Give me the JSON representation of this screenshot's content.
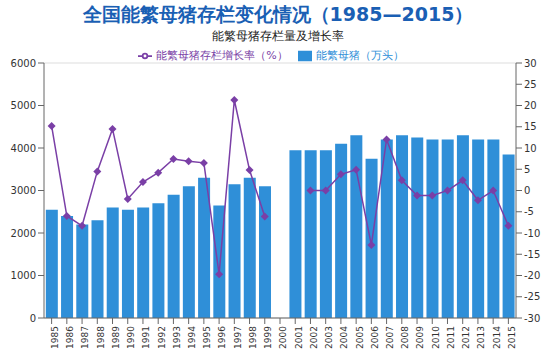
{
  "chart_data": {
    "type": "bar",
    "title": "全国能繁母猪存栏变化情况（1985—2015）",
    "subtitle": "能繁母猪存栏量及增长率",
    "categories": [
      "1985",
      "1986",
      "1987",
      "1988",
      "1989",
      "1990",
      "1991",
      "1992",
      "1993",
      "1994",
      "1995",
      "1996",
      "1997",
      "1998",
      "1999",
      "2000",
      "2001",
      "2002",
      "2003",
      "2004",
      "2005",
      "2006",
      "2007",
      "2008",
      "2009",
      "2010",
      "2011",
      "2012",
      "2013",
      "2014",
      "2015"
    ],
    "series": [
      {
        "name": "能繁母猪（万头）",
        "type": "bar",
        "color": "#2f8fd8",
        "values": [
          2550,
          2398,
          2200,
          2300,
          2600,
          2550,
          2600,
          2700,
          2900,
          3100,
          3300,
          2650,
          3150,
          3300,
          3100,
          null,
          3950,
          3950,
          3950,
          4100,
          4300,
          3750,
          4200,
          4300,
          4250,
          4200,
          4200,
          4300,
          4200,
          4200,
          3850
        ]
      },
      {
        "name": "能繁母猪存栏增长率（%）",
        "type": "line",
        "axis": "y2",
        "color": "#7a3fa6",
        "marker": "diamond",
        "values": [
          15.2,
          -6.0,
          -8.3,
          4.5,
          14.5,
          -2.0,
          2.0,
          4.2,
          7.4,
          6.9,
          6.5,
          -19.7,
          21.3,
          4.8,
          -6.1,
          null,
          null,
          0,
          0,
          3.8,
          4.9,
          -12.8,
          12.0,
          2.4,
          -1.2,
          -1.2,
          0,
          2.4,
          -2.3,
          0,
          -8.3
        ]
      }
    ],
    "ylim": [
      0,
      6000
    ],
    "yticks": [
      0,
      1000,
      2000,
      3000,
      4000,
      5000,
      6000
    ],
    "y2lim": [
      -30,
      30
    ],
    "y2ticks": [
      -30,
      -25,
      -20,
      -15,
      -10,
      -5,
      0,
      5,
      10,
      15,
      20,
      25,
      30
    ],
    "grid": true,
    "legend": "top"
  }
}
